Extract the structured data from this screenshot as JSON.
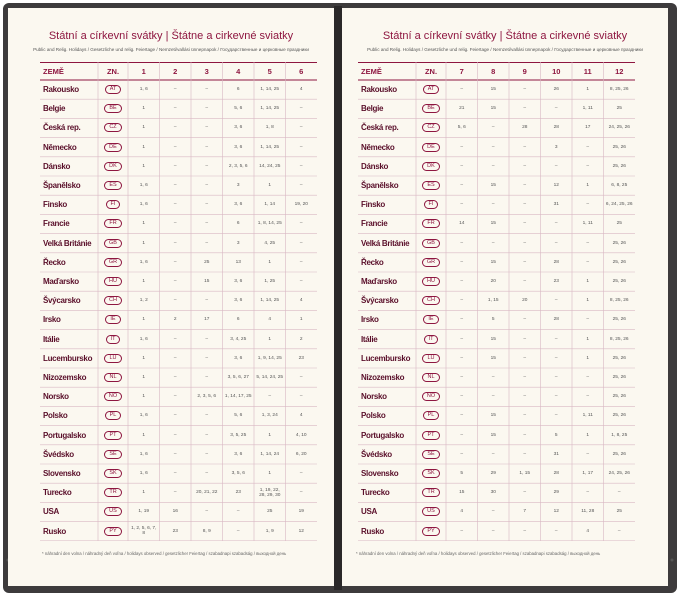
{
  "left_page": {
    "title": "Státní a církevní svátky | Štátne a cirkevné sviatky",
    "subtitle": "Public and Relig. Holidays / Gesetzliche und relig. Feiertage / Nemzeti/vallási ünnepnapok / Государственные и церковные праздники",
    "table": {
      "header": [
        "ZEMĚ",
        "ZN.",
        "1",
        "2",
        "3",
        "4",
        "5",
        "6"
      ],
      "rows": [
        [
          "Rakousko",
          "AT",
          "1, 6",
          "–",
          "–",
          "6",
          "1, 14, 25",
          "4"
        ],
        [
          "Belgie",
          "BE",
          "1",
          "–",
          "–",
          "5, 6",
          "1, 14, 25",
          "–"
        ],
        [
          "Česká rep.",
          "CZ",
          "1",
          "–",
          "–",
          "3, 6",
          "1, 8",
          "–"
        ],
        [
          "Německo",
          "DE",
          "1",
          "–",
          "–",
          "3, 6",
          "1, 14, 25",
          "–"
        ],
        [
          "Dánsko",
          "DK",
          "1",
          "–",
          "–",
          "2, 3, 5, 6",
          "14, 24, 25",
          "–"
        ],
        [
          "Španělsko",
          "ES",
          "1, 6",
          "–",
          "–",
          "3",
          "1",
          "–"
        ],
        [
          "Finsko",
          "FI",
          "1, 6",
          "–",
          "–",
          "3, 6",
          "1, 14",
          "19, 20"
        ],
        [
          "Francie",
          "FR",
          "1",
          "–",
          "–",
          "6",
          "1, 8, 14, 25",
          "–"
        ],
        [
          "Velká Británie",
          "GB",
          "1",
          "–",
          "–",
          "3",
          "4, 25",
          "–"
        ],
        [
          "Řecko",
          "GR",
          "1, 6",
          "–",
          "25",
          "13",
          "1",
          "–"
        ],
        [
          "Maďarsko",
          "HU",
          "1",
          "–",
          "15",
          "3, 6",
          "1, 25",
          "–"
        ],
        [
          "Švýcarsko",
          "CH",
          "1, 2",
          "–",
          "–",
          "3, 6",
          "1, 14, 25",
          "4"
        ],
        [
          "Irsko",
          "IE",
          "1",
          "2",
          "17",
          "6",
          "4",
          "1"
        ],
        [
          "Itálie",
          "IT",
          "1, 6",
          "–",
          "–",
          "3, 4, 25",
          "1",
          "2"
        ],
        [
          "Lucembursko",
          "LU",
          "1",
          "–",
          "–",
          "3, 6",
          "1, 9, 14, 25",
          "23"
        ],
        [
          "Nizozemsko",
          "NL",
          "1",
          "–",
          "–",
          "3, 5, 6, 27",
          "5, 14, 24, 25",
          "–"
        ],
        [
          "Norsko",
          "NO",
          "1",
          "–",
          "2, 3, 5, 6",
          "1, 14, 17, 25",
          "–",
          "–"
        ],
        [
          "Polsko",
          "PL",
          "1, 6",
          "–",
          "–",
          "5, 6",
          "1, 3, 24",
          "4"
        ],
        [
          "Portugalsko",
          "PT",
          "1",
          "–",
          "–",
          "3, 5, 25",
          "1",
          "4, 10"
        ],
        [
          "Švédsko",
          "SE",
          "1, 6",
          "–",
          "–",
          "3, 6",
          "1, 14, 24",
          "6, 20"
        ],
        [
          "Slovensko",
          "SK",
          "1, 6",
          "–",
          "–",
          "3, 5, 6",
          "1",
          "–"
        ],
        [
          "Turecko",
          "TR",
          "1",
          "–",
          "20, 21, 22",
          "23",
          "1, 19, 22, 28, 29, 30",
          "–"
        ],
        [
          "USA",
          "US",
          "1, 19",
          "16",
          "–",
          "–",
          "25",
          "19"
        ],
        [
          "Rusko",
          "PY",
          "1, 2, 5, 6, 7, 8",
          "23",
          "8, 9",
          "–",
          "1, 9",
          "12"
        ]
      ]
    },
    "footnote": "* náhradní den volna / náhradný deň voľna / holidays observed / gesetzlicher Feiertag / szabadnapi szabadság / выходной день"
  },
  "right_page": {
    "title": "Státní a církevní svátky | Štátne a cirkevné sviatky",
    "subtitle": "Public and Relig. Holidays / Gesetzliche und relig. Feiertage / Nemzeti/vallási ünnepnapok / Государственные и церковные праздники",
    "table": {
      "header": [
        "ZEMĚ",
        "ZN.",
        "7",
        "8",
        "9",
        "10",
        "11",
        "12"
      ],
      "rows": [
        [
          "Rakousko",
          "AT",
          "–",
          "15",
          "–",
          "26",
          "1",
          "8, 25, 26"
        ],
        [
          "Belgie",
          "BE",
          "21",
          "15",
          "–",
          "–",
          "1, 11",
          "25"
        ],
        [
          "Česká rep.",
          "CZ",
          "5, 6",
          "–",
          "28",
          "28",
          "17",
          "24, 25, 26"
        ],
        [
          "Německo",
          "DE",
          "–",
          "–",
          "–",
          "3",
          "–",
          "25, 26"
        ],
        [
          "Dánsko",
          "DK",
          "–",
          "–",
          "–",
          "–",
          "–",
          "25, 26"
        ],
        [
          "Španělsko",
          "ES",
          "–",
          "15",
          "–",
          "12",
          "1",
          "6, 8, 25"
        ],
        [
          "Finsko",
          "FI",
          "–",
          "–",
          "–",
          "31",
          "–",
          "6, 24, 25, 26"
        ],
        [
          "Francie",
          "FR",
          "14",
          "15",
          "–",
          "–",
          "1, 11",
          "25"
        ],
        [
          "Velká Británie",
          "GB",
          "–",
          "–",
          "–",
          "–",
          "–",
          "25, 26"
        ],
        [
          "Řecko",
          "GR",
          "–",
          "15",
          "–",
          "28",
          "–",
          "25, 26"
        ],
        [
          "Maďarsko",
          "HU",
          "–",
          "20",
          "–",
          "23",
          "1",
          "25, 26"
        ],
        [
          "Švýcarsko",
          "CH",
          "–",
          "1, 15",
          "20",
          "–",
          "1",
          "8, 25, 26"
        ],
        [
          "Irsko",
          "IE",
          "–",
          "5",
          "–",
          "28",
          "–",
          "25, 26"
        ],
        [
          "Itálie",
          "IT",
          "–",
          "15",
          "–",
          "–",
          "1",
          "8, 25, 26"
        ],
        [
          "Lucembursko",
          "LU",
          "–",
          "15",
          "–",
          "–",
          "1",
          "25, 26"
        ],
        [
          "Nizozemsko",
          "NL",
          "–",
          "–",
          "–",
          "–",
          "–",
          "25, 26"
        ],
        [
          "Norsko",
          "NO",
          "–",
          "–",
          "–",
          "–",
          "–",
          "25, 26"
        ],
        [
          "Polsko",
          "PL",
          "–",
          "15",
          "–",
          "–",
          "1, 11",
          "25, 26"
        ],
        [
          "Portugalsko",
          "PT",
          "–",
          "15",
          "–",
          "5",
          "1",
          "1, 8, 25"
        ],
        [
          "Švédsko",
          "SE",
          "–",
          "–",
          "–",
          "31",
          "–",
          "25, 26"
        ],
        [
          "Slovensko",
          "SK",
          "5",
          "29",
          "1, 15",
          "28",
          "1, 17",
          "24, 25, 26"
        ],
        [
          "Turecko",
          "TR",
          "15",
          "30",
          "–",
          "29",
          "–",
          "–"
        ],
        [
          "USA",
          "US",
          "4",
          "–",
          "7",
          "12",
          "11, 28",
          "25"
        ],
        [
          "Rusko",
          "PY",
          "–",
          "–",
          "–",
          "–",
          "4",
          "–"
        ]
      ]
    },
    "footnote": "* náhradní den volna / náhradný deň voľna / holidays observed / gesetzlicher Feiertag / szabadnapi szabadság / выходной день"
  }
}
